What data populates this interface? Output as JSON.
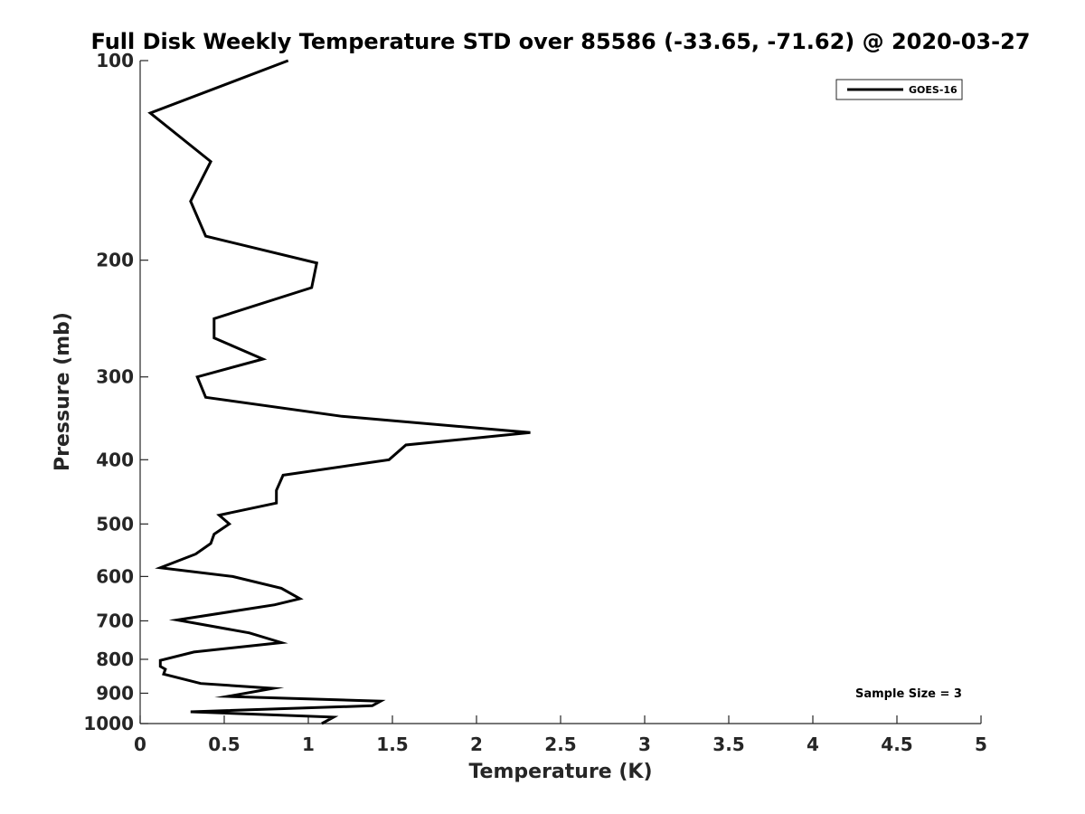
{
  "chart_data": {
    "type": "line",
    "title": "Full Disk Weekly Temperature STD over 85586 (-33.65, -71.62) @ 2020-03-27",
    "xlabel": "Temperature (K)",
    "ylabel": "Pressure (mb)",
    "xlim": [
      0,
      5
    ],
    "ylim": [
      100,
      1000
    ],
    "y_scale": "log",
    "y_reversed": true,
    "grid": false,
    "x_ticks": [
      "0",
      "0.5",
      "1",
      "1.5",
      "2",
      "2.5",
      "3",
      "3.5",
      "4",
      "4.5",
      "5"
    ],
    "y_ticks": [
      "100",
      "200",
      "300",
      "400",
      "500",
      "600",
      "700",
      "800",
      "900",
      "1000"
    ],
    "legend": {
      "position": "top-right",
      "entries": [
        "GOES-16"
      ]
    },
    "annotation": "Sample Size = 3",
    "series": [
      {
        "name": "GOES-16",
        "color": "#000000",
        "points": [
          [
            0.88,
            100
          ],
          [
            0.06,
            120
          ],
          [
            0.42,
            142
          ],
          [
            0.3,
            163
          ],
          [
            0.39,
            184
          ],
          [
            1.05,
            202
          ],
          [
            1.02,
            220
          ],
          [
            0.44,
            245
          ],
          [
            0.44,
            262
          ],
          [
            0.73,
            282
          ],
          [
            0.34,
            300
          ],
          [
            0.39,
            322
          ],
          [
            1.2,
            344
          ],
          [
            2.32,
            364
          ],
          [
            1.58,
            380
          ],
          [
            1.48,
            400
          ],
          [
            0.85,
            422
          ],
          [
            0.81,
            445
          ],
          [
            0.81,
            465
          ],
          [
            0.47,
            485
          ],
          [
            0.53,
            500
          ],
          [
            0.44,
            518
          ],
          [
            0.42,
            535
          ],
          [
            0.33,
            555
          ],
          [
            0.12,
            582
          ],
          [
            0.55,
            600
          ],
          [
            0.84,
            625
          ],
          [
            0.95,
            648
          ],
          [
            0.8,
            662
          ],
          [
            0.22,
            698
          ],
          [
            0.65,
            730
          ],
          [
            0.84,
            755
          ],
          [
            0.32,
            780
          ],
          [
            0.12,
            803
          ],
          [
            0.12,
            820
          ],
          [
            0.15,
            828
          ],
          [
            0.14,
            842
          ],
          [
            0.36,
            870
          ],
          [
            0.79,
            885
          ],
          [
            0.52,
            910
          ],
          [
            1.43,
            925
          ],
          [
            1.38,
            940
          ],
          [
            0.3,
            960
          ],
          [
            1.15,
            978
          ],
          [
            1.08,
            1000
          ]
        ]
      }
    ]
  }
}
